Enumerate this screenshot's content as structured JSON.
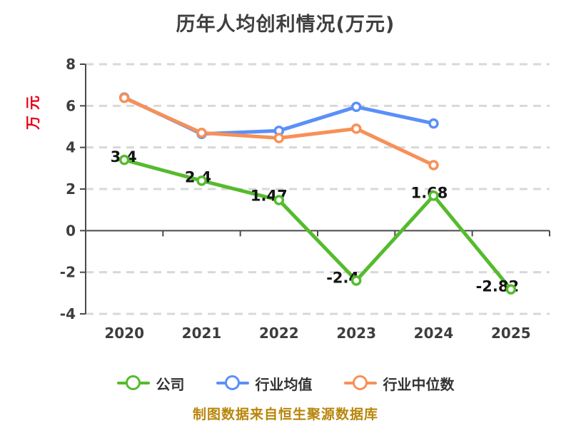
{
  "header": {
    "title": "历年人均创利情况(万元)"
  },
  "y_axis": {
    "unit_label": "万元",
    "unit_color": "#e60012"
  },
  "footer": {
    "source_text": "制图数据来自恒生聚源数据库",
    "color": "#b8860b"
  },
  "chart_data": {
    "type": "line",
    "title": "历年人均创利情况(万元)",
    "categories": [
      "2020",
      "2021",
      "2022",
      "2023",
      "2024",
      "2025"
    ],
    "xlabel": "",
    "ylabel": "万元",
    "ylim": [
      -4,
      8
    ],
    "y_ticks": [
      8,
      6,
      4,
      2,
      0,
      -2,
      -4
    ],
    "grid": "horizontal-dashed",
    "legend_position": "bottom",
    "axis_color": "#4a4a4a",
    "gridline_color": "#d8d8d8",
    "tick_label_color": "#3d3d3d",
    "data_label_color": "#141414",
    "marker_fill": "#ffffff",
    "series": [
      {
        "name": "公司",
        "color": "#55bb2d",
        "values": [
          3.4,
          2.4,
          1.47,
          -2.4,
          1.68,
          -2.82
        ],
        "data_labels": [
          "3.4",
          "2.4",
          "1.47",
          "-2.4",
          "1.68",
          "-2.82"
        ],
        "label_offsets": [
          [
            -1,
            -4
          ],
          [
            -5,
            -5
          ],
          [
            -14,
            -6
          ],
          [
            -19,
            -4
          ],
          [
            -6,
            -4
          ],
          [
            -19,
            -4
          ]
        ]
      },
      {
        "name": "行业均值",
        "color": "#5b8ff9",
        "values": [
          6.4,
          4.65,
          4.8,
          5.95,
          5.15,
          null
        ]
      },
      {
        "name": "行业中位数",
        "color": "#f79057",
        "values": [
          6.38,
          4.7,
          4.45,
          4.9,
          3.15,
          null
        ]
      }
    ]
  }
}
